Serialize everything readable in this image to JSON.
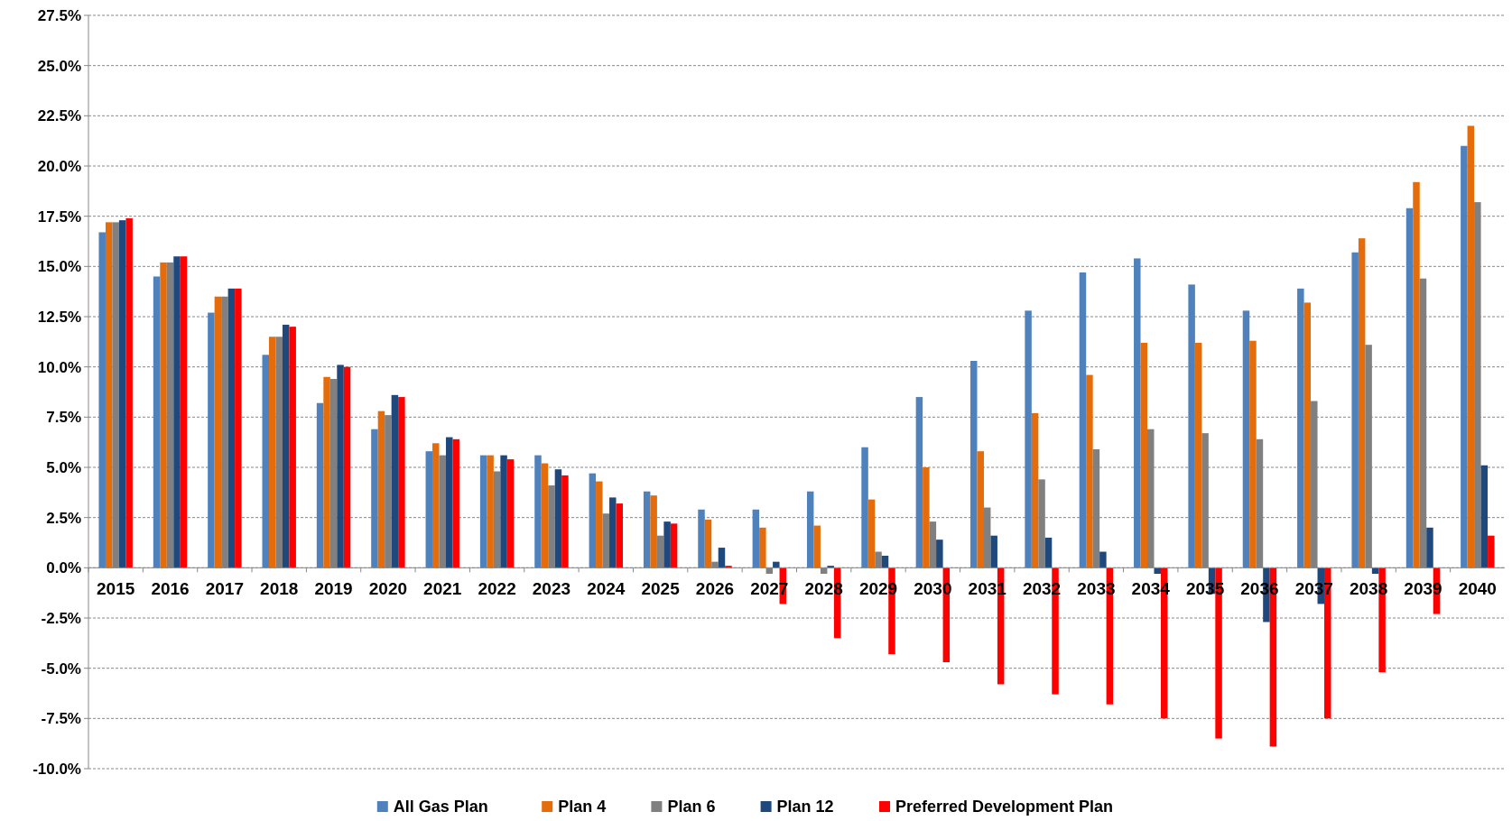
{
  "chart_data": {
    "type": "bar",
    "categories": [
      "2015",
      "2016",
      "2017",
      "2018",
      "2019",
      "2020",
      "2021",
      "2022",
      "2023",
      "2024",
      "2025",
      "2026",
      "2027",
      "2028",
      "2029",
      "2030",
      "2031",
      "2032",
      "2033",
      "2034",
      "2035",
      "2036",
      "2037",
      "2038",
      "2039",
      "2040"
    ],
    "series": [
      {
        "name": "All Gas Plan",
        "color": "#4f81bd",
        "values": [
          16.7,
          14.5,
          12.7,
          10.6,
          8.2,
          6.9,
          5.8,
          5.6,
          5.6,
          4.7,
          3.8,
          2.9,
          2.9,
          3.8,
          6.0,
          8.5,
          10.3,
          12.8,
          14.7,
          15.4,
          14.1,
          12.8,
          13.9,
          15.7,
          17.9,
          21.0
        ]
      },
      {
        "name": "Plan 4",
        "color": "#e46c0a",
        "values": [
          17.2,
          15.2,
          13.5,
          11.5,
          9.5,
          7.8,
          6.2,
          5.6,
          5.2,
          4.3,
          3.6,
          2.4,
          2.0,
          2.1,
          3.4,
          5.0,
          5.8,
          7.7,
          9.6,
          11.2,
          11.2,
          11.3,
          13.2,
          16.4,
          19.2,
          22.0
        ]
      },
      {
        "name": "Plan 6",
        "color": "#808080",
        "values": [
          17.2,
          15.2,
          13.5,
          11.5,
          9.4,
          7.6,
          5.6,
          4.8,
          4.1,
          2.7,
          1.6,
          0.3,
          -0.3,
          -0.3,
          0.8,
          2.3,
          3.0,
          4.4,
          5.9,
          6.9,
          6.7,
          6.4,
          8.3,
          11.1,
          14.4,
          18.2
        ]
      },
      {
        "name": "Plan 12",
        "color": "#1f497d",
        "values": [
          17.3,
          15.5,
          13.9,
          12.1,
          10.1,
          8.6,
          6.5,
          5.6,
          4.9,
          3.5,
          2.3,
          1.0,
          0.3,
          0.1,
          0.6,
          1.4,
          1.6,
          1.5,
          0.8,
          -0.3,
          -1.3,
          -2.7,
          -1.8,
          -0.3,
          2.0,
          5.1
        ]
      },
      {
        "name": "Preferred Development Plan",
        "color": "#ff0000",
        "values": [
          17.4,
          15.5,
          13.9,
          12.0,
          10.0,
          8.5,
          6.4,
          5.4,
          4.6,
          3.2,
          2.2,
          0.1,
          -1.8,
          -3.5,
          -4.3,
          -4.7,
          -5.8,
          -6.3,
          -6.8,
          -7.5,
          -8.5,
          -8.9,
          -7.5,
          -5.2,
          -2.3,
          1.6
        ]
      }
    ],
    "ylim": [
      -10,
      27.5
    ],
    "yticks": [
      {
        "value": -10,
        "label": "-10.0%"
      },
      {
        "value": -7.5,
        "label": "-7.5%"
      },
      {
        "value": -5,
        "label": "-5.0%"
      },
      {
        "value": -2.5,
        "label": "-2.5%"
      },
      {
        "value": 0,
        "label": "0.0%"
      },
      {
        "value": 2.5,
        "label": "2.5%"
      },
      {
        "value": 5,
        "label": "5.0%"
      },
      {
        "value": 7.5,
        "label": "7.5%"
      },
      {
        "value": 10,
        "label": "10.0%"
      },
      {
        "value": 12.5,
        "label": "12.5%"
      },
      {
        "value": 15,
        "label": "15.0%"
      },
      {
        "value": 17.5,
        "label": "17.5%"
      },
      {
        "value": 20,
        "label": "20.0%"
      },
      {
        "value": 22.5,
        "label": "22.5%"
      },
      {
        "value": 25,
        "label": "25.0%"
      },
      {
        "value": 27.5,
        "label": "27.5%"
      }
    ],
    "grid": "y",
    "legend": "bottom"
  }
}
